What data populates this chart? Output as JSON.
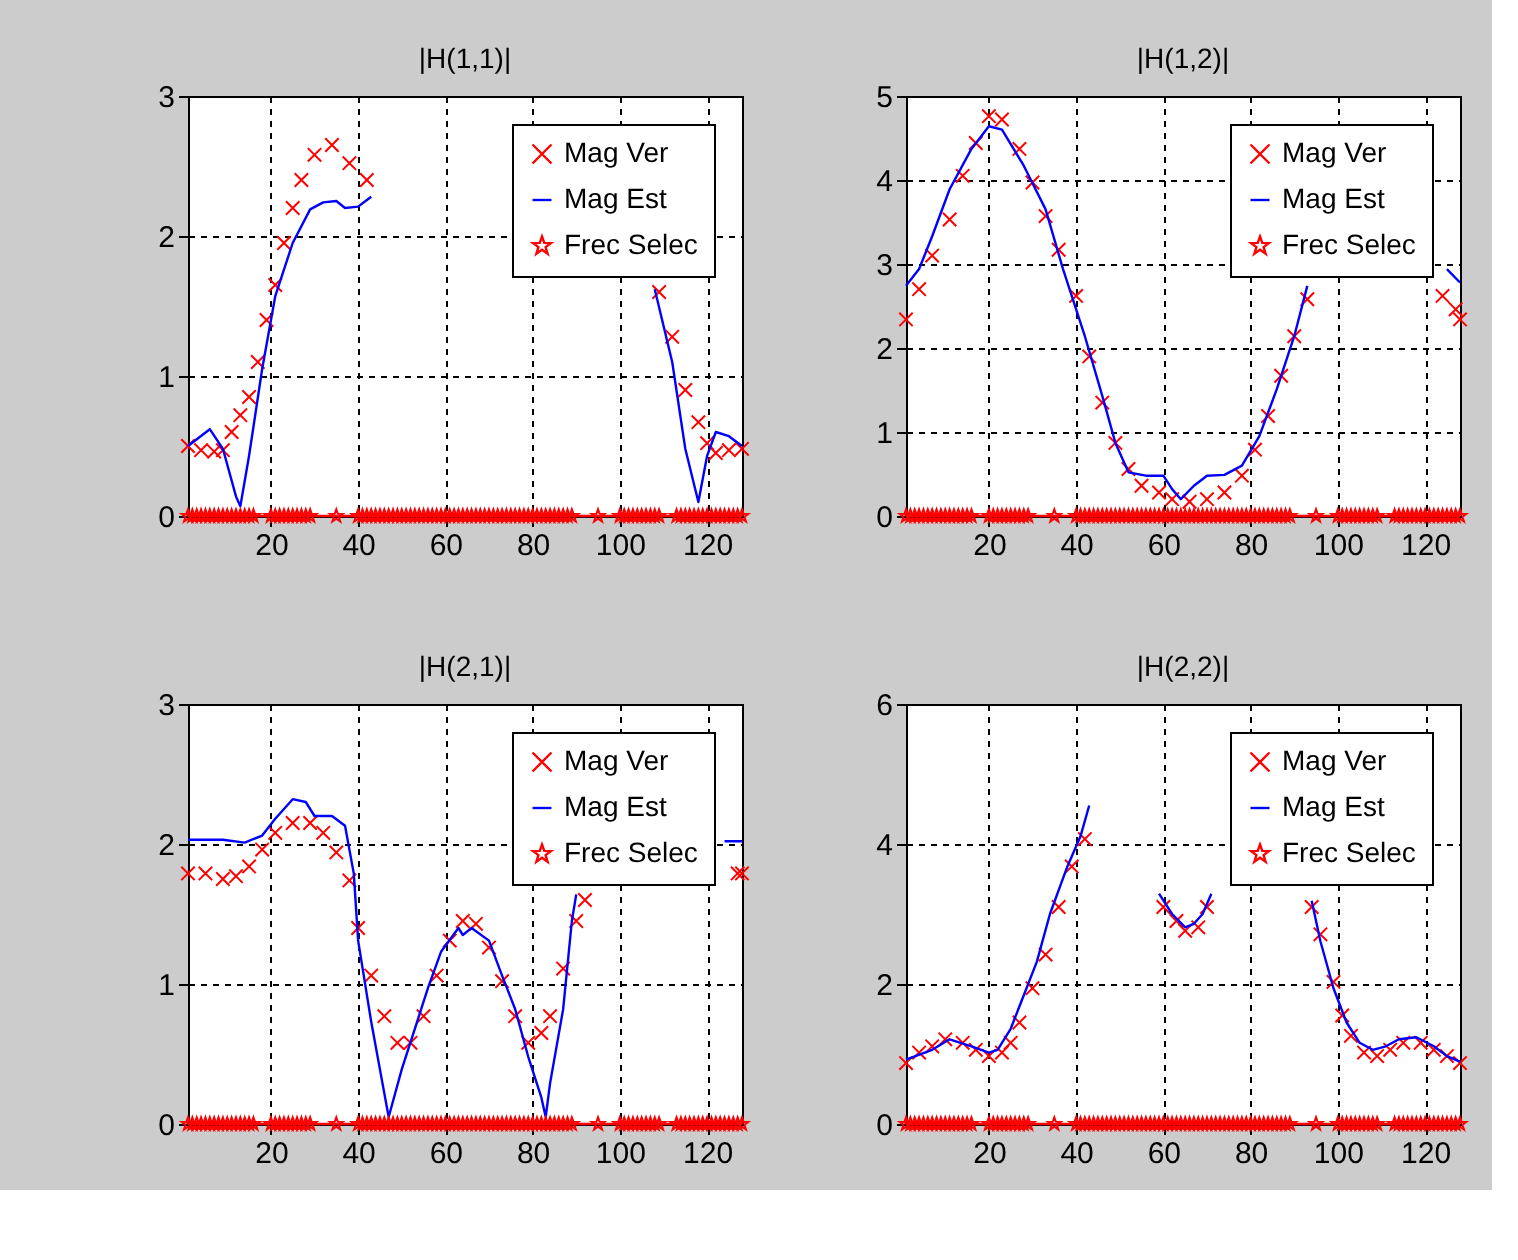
{
  "chart_data": [
    {
      "type": "line",
      "title": "|H(1,1)|",
      "xlim": [
        1,
        128
      ],
      "xticks": [
        20,
        40,
        60,
        80,
        100,
        120
      ],
      "ylim": [
        0,
        3
      ],
      "yticks": [
        0,
        1,
        2,
        3
      ],
      "grid": true,
      "legend": "top right",
      "series": [
        {
          "name": "Mag Ver",
          "color": "#ff0000",
          "type": "scatter",
          "marker": "cross",
          "x": [
            1,
            4,
            7,
            9,
            11,
            13,
            15,
            17,
            19,
            21,
            23,
            25,
            27,
            30,
            34,
            38,
            42,
            75,
            109,
            112,
            115,
            118,
            120,
            122,
            125,
            128
          ],
          "values": [
            0.5,
            0.47,
            0.46,
            0.47,
            0.6,
            0.72,
            0.85,
            1.1,
            1.4,
            1.65,
            1.95,
            2.2,
            2.4,
            2.58,
            2.65,
            2.52,
            2.4,
            null,
            1.6,
            1.28,
            0.9,
            0.67,
            0.52,
            0.45,
            0.47,
            0.48
          ]
        },
        {
          "name": "Mag Est",
          "color": "#0000ff",
          "marker": "none",
          "x": [
            1,
            6,
            9,
            12,
            13,
            15,
            18,
            21,
            25,
            29,
            32,
            35,
            37,
            40,
            43,
            75,
            108,
            112,
            115,
            118,
            120,
            122,
            125,
            128
          ],
          "values": [
            0.5,
            0.62,
            0.48,
            0.14,
            0.07,
            0.43,
            1.05,
            1.57,
            1.95,
            2.19,
            2.24,
            2.25,
            2.2,
            2.21,
            2.28,
            null,
            1.62,
            1.1,
            0.48,
            0.1,
            0.43,
            0.6,
            0.57,
            0.5
          ]
        },
        {
          "name": "Frec Selec",
          "color": "#ff0000",
          "type": "line",
          "marker": "star",
          "x": [
            1,
            2,
            3,
            4,
            5,
            6,
            7,
            8,
            9,
            10,
            11,
            12,
            13,
            14,
            15,
            16,
            20,
            21,
            22,
            23,
            24,
            25,
            26,
            27,
            28,
            29,
            35,
            40,
            41,
            42,
            43,
            44,
            45,
            46,
            47,
            48,
            49,
            50,
            51,
            52,
            53,
            54,
            55,
            56,
            57,
            58,
            59,
            60,
            61,
            62,
            63,
            64,
            65,
            66,
            67,
            68,
            69,
            70,
            71,
            72,
            73,
            74,
            75,
            76,
            77,
            78,
            79,
            80,
            81,
            82,
            83,
            84,
            85,
            86,
            87,
            88,
            89,
            95,
            100,
            101,
            102,
            103,
            104,
            105,
            106,
            107,
            108,
            109,
            113,
            114,
            115,
            116,
            117,
            118,
            119,
            120,
            121,
            122,
            123,
            124,
            125,
            126,
            127,
            128
          ],
          "values": [
            0,
            0,
            0,
            0,
            0,
            0,
            0,
            0,
            0,
            0,
            0,
            0,
            0,
            0,
            0,
            0,
            0,
            0,
            0,
            0,
            0,
            0,
            0,
            0,
            0,
            0,
            0,
            0,
            0,
            0,
            0,
            0,
            0,
            0,
            0,
            0,
            0,
            0,
            0,
            0,
            0,
            0,
            0,
            0,
            0,
            0,
            0,
            0,
            0,
            0,
            0,
            0,
            0,
            0,
            0,
            0,
            0,
            0,
            0,
            0,
            0,
            0,
            0,
            0,
            0,
            0,
            0,
            0,
            0,
            0,
            0,
            0,
            0,
            0,
            0,
            0,
            0,
            0,
            0,
            0,
            0,
            0,
            0,
            0,
            0,
            0,
            0,
            0,
            0,
            0,
            0,
            0,
            0,
            0,
            0,
            0,
            0,
            0,
            0,
            0,
            0,
            0,
            0,
            0
          ]
        }
      ]
    },
    {
      "type": "line",
      "title": "|H(1,2)|",
      "xlim": [
        1,
        128
      ],
      "xticks": [
        20,
        40,
        60,
        80,
        100,
        120
      ],
      "ylim": [
        0,
        5
      ],
      "yticks": [
        0,
        1,
        2,
        3,
        4,
        5
      ],
      "grid": true,
      "legend": "top right",
      "series": [
        {
          "name": "Mag Ver",
          "color": "#ff0000",
          "type": "scatter",
          "marker": "cross",
          "x": [
            1,
            4,
            7,
            11,
            14,
            17,
            20,
            23,
            27,
            30,
            33,
            36,
            40,
            43,
            46,
            49,
            52,
            55,
            59,
            62,
            66,
            70,
            74,
            78,
            81,
            84,
            87,
            90,
            93,
            108,
            124,
            127,
            128
          ],
          "values": [
            2.34,
            2.7,
            3.1,
            3.53,
            4.05,
            4.44,
            4.76,
            4.72,
            4.37,
            3.97,
            3.57,
            3.17,
            2.62,
            1.9,
            1.35,
            0.87,
            0.56,
            0.36,
            0.28,
            0.2,
            0.17,
            0.2,
            0.28,
            0.48,
            0.79,
            1.19,
            1.67,
            2.14,
            2.58,
            null,
            2.62,
            2.46,
            2.34
          ]
        },
        {
          "name": "Mag Est",
          "color": "#0000ff",
          "marker": "none",
          "x": [
            1,
            4,
            7,
            11,
            16,
            20,
            23,
            28,
            33,
            37,
            42,
            46,
            49,
            52,
            56,
            60,
            62,
            64,
            67,
            70,
            74,
            78,
            82,
            86,
            90,
            93,
            108,
            125,
            128
          ],
          "values": [
            2.74,
            2.94,
            3.33,
            3.89,
            4.37,
            4.64,
            4.6,
            4.17,
            3.65,
            2.94,
            2.14,
            1.43,
            0.87,
            0.52,
            0.48,
            0.48,
            0.32,
            0.2,
            0.36,
            0.48,
            0.49,
            0.6,
            0.95,
            1.51,
            2.14,
            2.74,
            null,
            2.94,
            2.78
          ]
        },
        {
          "name": "Frec Selec",
          "color": "#ff0000",
          "type": "line",
          "marker": "star",
          "x": [
            1,
            2,
            3,
            4,
            5,
            6,
            7,
            8,
            9,
            10,
            11,
            12,
            13,
            14,
            15,
            16,
            20,
            21,
            22,
            23,
            24,
            25,
            26,
            27,
            28,
            29,
            35,
            40,
            41,
            42,
            43,
            44,
            45,
            46,
            47,
            48,
            49,
            50,
            51,
            52,
            53,
            54,
            55,
            56,
            57,
            58,
            59,
            60,
            61,
            62,
            63,
            64,
            65,
            66,
            67,
            68,
            69,
            70,
            71,
            72,
            73,
            74,
            75,
            76,
            77,
            78,
            79,
            80,
            81,
            82,
            83,
            84,
            85,
            86,
            87,
            88,
            89,
            95,
            100,
            101,
            102,
            103,
            104,
            105,
            106,
            107,
            108,
            109,
            113,
            114,
            115,
            116,
            117,
            118,
            119,
            120,
            121,
            122,
            123,
            124,
            125,
            126,
            127,
            128
          ],
          "values": [
            0,
            0,
            0,
            0,
            0,
            0,
            0,
            0,
            0,
            0,
            0,
            0,
            0,
            0,
            0,
            0,
            0,
            0,
            0,
            0,
            0,
            0,
            0,
            0,
            0,
            0,
            0,
            0,
            0,
            0,
            0,
            0,
            0,
            0,
            0,
            0,
            0,
            0,
            0,
            0,
            0,
            0,
            0,
            0,
            0,
            0,
            0,
            0,
            0,
            0,
            0,
            0,
            0,
            0,
            0,
            0,
            0,
            0,
            0,
            0,
            0,
            0,
            0,
            0,
            0,
            0,
            0,
            0,
            0,
            0,
            0,
            0,
            0,
            0,
            0,
            0,
            0,
            0,
            0,
            0,
            0,
            0,
            0,
            0,
            0,
            0,
            0,
            0,
            0,
            0,
            0,
            0,
            0,
            0,
            0,
            0,
            0,
            0,
            0,
            0,
            0,
            0,
            0,
            0
          ]
        }
      ]
    },
    {
      "type": "line",
      "title": "|H(2,1)|",
      "xlim": [
        1,
        128
      ],
      "xticks": [
        20,
        40,
        60,
        80,
        100,
        120
      ],
      "ylim": [
        0,
        3
      ],
      "yticks": [
        0,
        1,
        2,
        3
      ],
      "grid": true,
      "legend": "top right",
      "series": [
        {
          "name": "Mag Ver",
          "color": "#ff0000",
          "type": "scatter",
          "marker": "cross",
          "x": [
            1,
            5,
            9,
            12,
            15,
            18,
            21,
            25,
            29,
            32,
            35,
            38,
            40,
            43,
            46,
            49,
            52,
            55,
            58,
            61,
            64,
            67,
            70,
            73,
            76,
            79,
            82,
            84,
            87,
            90,
            92,
            110,
            127,
            128
          ],
          "values": [
            1.79,
            1.79,
            1.75,
            1.77,
            1.84,
            1.96,
            2.08,
            2.15,
            2.15,
            2.08,
            1.94,
            1.74,
            1.4,
            1.06,
            0.77,
            0.58,
            0.58,
            0.77,
            1.06,
            1.31,
            1.45,
            1.43,
            1.26,
            1.02,
            0.77,
            0.58,
            0.65,
            0.77,
            1.11,
            1.45,
            1.6,
            null,
            1.79,
            1.79
          ]
        },
        {
          "name": "Mag Est",
          "color": "#0000ff",
          "marker": "none",
          "x": [
            1,
            9,
            14,
            18,
            21,
            25,
            28,
            30,
            34,
            37,
            39,
            40,
            43,
            45,
            47,
            50,
            53,
            56,
            59,
            63,
            64,
            66,
            70,
            73,
            76,
            79,
            82,
            83,
            84,
            87,
            89,
            90,
            110,
            124,
            128
          ],
          "values": [
            2.03,
            2.03,
            2.01,
            2.06,
            2.18,
            2.32,
            2.3,
            2.2,
            2.2,
            2.13,
            1.79,
            1.31,
            0.73,
            0.39,
            0.05,
            0.39,
            0.68,
            0.97,
            1.23,
            1.4,
            1.35,
            1.4,
            1.31,
            1.06,
            0.82,
            0.48,
            0.19,
            0.05,
            0.29,
            0.82,
            1.45,
            1.64,
            null,
            2.02,
            2.02
          ]
        },
        {
          "name": "Frec Selec",
          "color": "#ff0000",
          "type": "line",
          "marker": "star",
          "x": [
            1,
            2,
            3,
            4,
            5,
            6,
            7,
            8,
            9,
            10,
            11,
            12,
            13,
            14,
            15,
            16,
            20,
            21,
            22,
            23,
            24,
            25,
            26,
            27,
            28,
            29,
            35,
            40,
            41,
            42,
            43,
            44,
            45,
            46,
            47,
            48,
            49,
            50,
            51,
            52,
            53,
            54,
            55,
            56,
            57,
            58,
            59,
            60,
            61,
            62,
            63,
            64,
            65,
            66,
            67,
            68,
            69,
            70,
            71,
            72,
            73,
            74,
            75,
            76,
            77,
            78,
            79,
            80,
            81,
            82,
            83,
            84,
            85,
            86,
            87,
            88,
            89,
            95,
            100,
            101,
            102,
            103,
            104,
            105,
            106,
            107,
            108,
            109,
            113,
            114,
            115,
            116,
            117,
            118,
            119,
            120,
            121,
            122,
            123,
            124,
            125,
            126,
            127,
            128
          ],
          "values": [
            0,
            0,
            0,
            0,
            0,
            0,
            0,
            0,
            0,
            0,
            0,
            0,
            0,
            0,
            0,
            0,
            0,
            0,
            0,
            0,
            0,
            0,
            0,
            0,
            0,
            0,
            0,
            0,
            0,
            0,
            0,
            0,
            0,
            0,
            0,
            0,
            0,
            0,
            0,
            0,
            0,
            0,
            0,
            0,
            0,
            0,
            0,
            0,
            0,
            0,
            0,
            0,
            0,
            0,
            0,
            0,
            0,
            0,
            0,
            0,
            0,
            0,
            0,
            0,
            0,
            0,
            0,
            0,
            0,
            0,
            0,
            0,
            0,
            0,
            0,
            0,
            0,
            0,
            0,
            0,
            0,
            0,
            0,
            0,
            0,
            0,
            0,
            0,
            0,
            0,
            0,
            0,
            0,
            0,
            0,
            0,
            0,
            0,
            0,
            0,
            0,
            0,
            0,
            0
          ]
        }
      ]
    },
    {
      "type": "line",
      "title": "|H(2,2)|",
      "xlim": [
        1,
        128
      ],
      "xticks": [
        20,
        40,
        60,
        80,
        100,
        120
      ],
      "ylim": [
        0,
        6
      ],
      "yticks": [
        0,
        2,
        4,
        6
      ],
      "grid": true,
      "legend": "top right",
      "series": [
        {
          "name": "Mag Ver",
          "color": "#ff0000",
          "type": "scatter",
          "marker": "cross",
          "x": [
            1,
            4,
            7,
            10,
            14,
            17,
            20,
            23,
            25,
            27,
            30,
            33,
            36,
            39,
            42,
            50,
            60,
            63,
            65,
            68,
            70,
            83,
            94,
            96,
            99,
            101,
            103,
            106,
            109,
            112,
            115,
            119,
            122,
            125,
            128
          ],
          "values": [
            0.87,
            1.02,
            1.11,
            1.21,
            1.16,
            1.06,
            0.97,
            1.02,
            1.16,
            1.45,
            1.94,
            2.42,
            3.1,
            3.68,
            4.07,
            null,
            3.1,
            2.9,
            2.76,
            2.81,
            3.1,
            null,
            3.1,
            2.71,
            2.03,
            1.55,
            1.26,
            1.02,
            0.97,
            1.06,
            1.16,
            1.16,
            1.06,
            0.97,
            0.87
          ]
        },
        {
          "name": "Mag Est",
          "color": "#0000ff",
          "marker": "none",
          "x": [
            1,
            7,
            11,
            16,
            20,
            22,
            25,
            28,
            31,
            34,
            38,
            41,
            43,
            50,
            59,
            62,
            65,
            67,
            69,
            71,
            83,
            94,
            96,
            99,
            102,
            105,
            108,
            111,
            114,
            118,
            122,
            125,
            128
          ],
          "values": [
            0.92,
            1.06,
            1.21,
            1.11,
            1.02,
            1.06,
            1.36,
            1.84,
            2.32,
            3.0,
            3.68,
            4.11,
            4.55,
            null,
            3.29,
            3.0,
            2.81,
            2.86,
            3.0,
            3.29,
            null,
            3.19,
            2.61,
            1.94,
            1.45,
            1.16,
            1.06,
            1.11,
            1.21,
            1.24,
            1.11,
            0.97,
            0.89
          ]
        },
        {
          "name": "Frec Selec",
          "color": "#ff0000",
          "type": "line",
          "marker": "star",
          "x": [
            1,
            2,
            3,
            4,
            5,
            6,
            7,
            8,
            9,
            10,
            11,
            12,
            13,
            14,
            15,
            16,
            20,
            21,
            22,
            23,
            24,
            25,
            26,
            27,
            28,
            29,
            35,
            40,
            41,
            42,
            43,
            44,
            45,
            46,
            47,
            48,
            49,
            50,
            51,
            52,
            53,
            54,
            55,
            56,
            57,
            58,
            59,
            60,
            61,
            62,
            63,
            64,
            65,
            66,
            67,
            68,
            69,
            70,
            71,
            72,
            73,
            74,
            75,
            76,
            77,
            78,
            79,
            80,
            81,
            82,
            83,
            84,
            85,
            86,
            87,
            88,
            89,
            95,
            100,
            101,
            102,
            103,
            104,
            105,
            106,
            107,
            108,
            109,
            113,
            114,
            115,
            116,
            117,
            118,
            119,
            120,
            121,
            122,
            123,
            124,
            125,
            126,
            127,
            128
          ],
          "values": [
            0,
            0,
            0,
            0,
            0,
            0,
            0,
            0,
            0,
            0,
            0,
            0,
            0,
            0,
            0,
            0,
            0,
            0,
            0,
            0,
            0,
            0,
            0,
            0,
            0,
            0,
            0,
            0,
            0,
            0,
            0,
            0,
            0,
            0,
            0,
            0,
            0,
            0,
            0,
            0,
            0,
            0,
            0,
            0,
            0,
            0,
            0,
            0,
            0,
            0,
            0,
            0,
            0,
            0,
            0,
            0,
            0,
            0,
            0,
            0,
            0,
            0,
            0,
            0,
            0,
            0,
            0,
            0,
            0,
            0,
            0,
            0,
            0,
            0,
            0,
            0,
            0,
            0,
            0,
            0,
            0,
            0,
            0,
            0,
            0,
            0,
            0,
            0,
            0,
            0,
            0,
            0,
            0,
            0,
            0,
            0,
            0,
            0,
            0,
            0,
            0,
            0,
            0,
            0
          ]
        }
      ]
    }
  ]
}
